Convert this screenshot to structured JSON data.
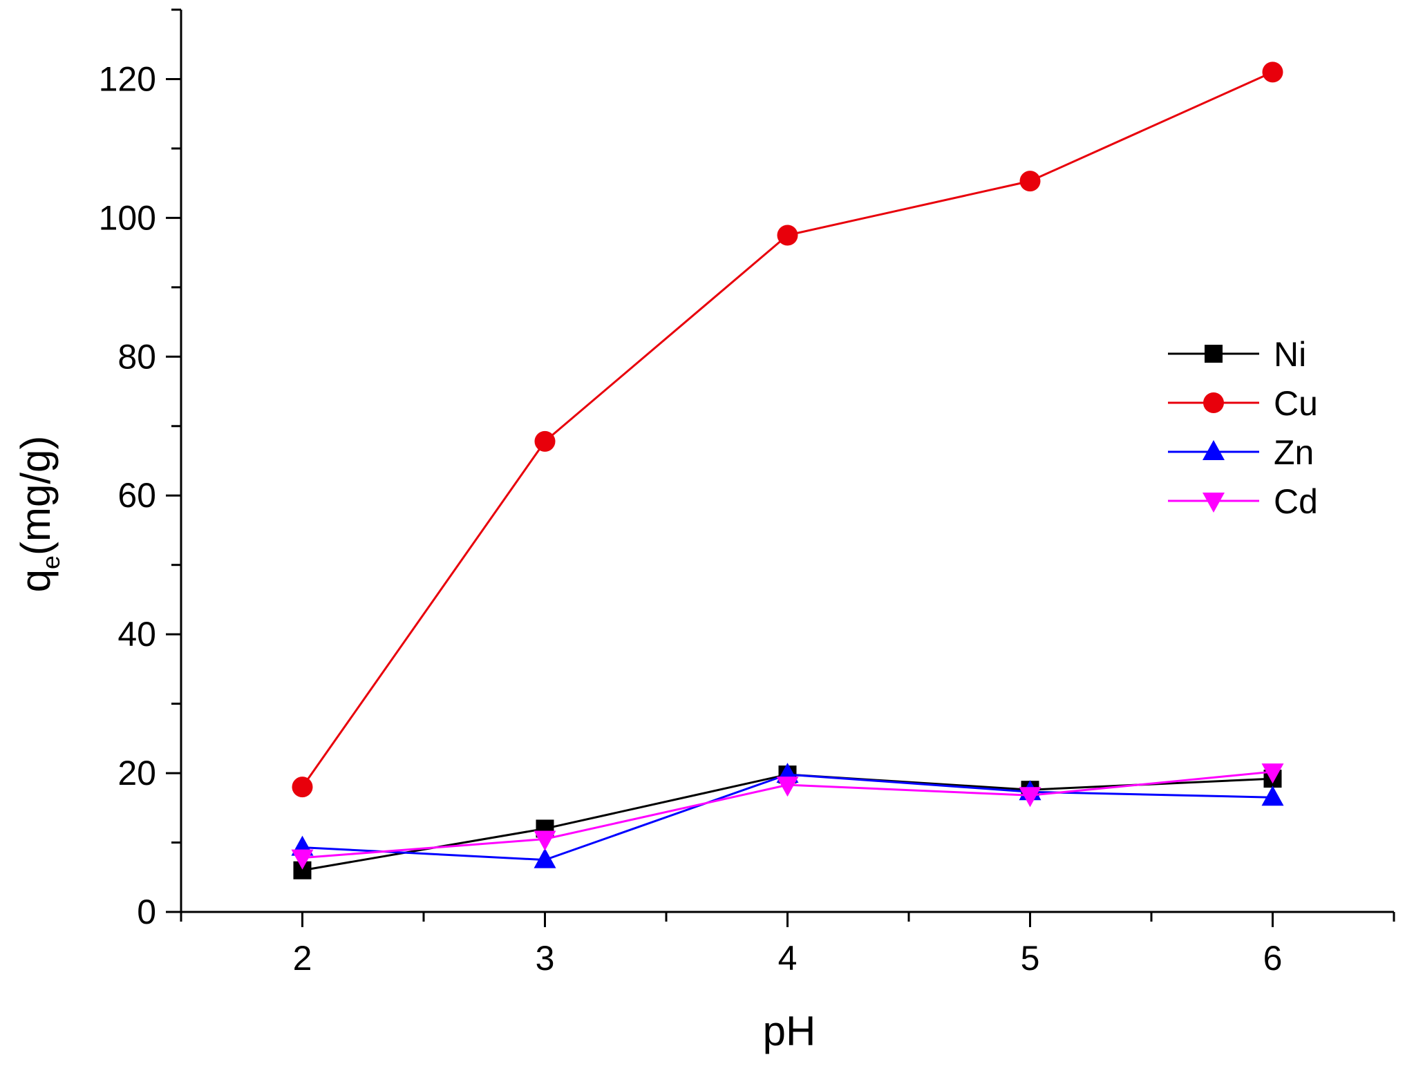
{
  "chart_data": {
    "type": "line",
    "xlabel": "pH",
    "ylabel": {
      "main": "q",
      "subscript": "e",
      "unit": "(mg/g)"
    },
    "x": [
      2,
      3,
      4,
      5,
      6
    ],
    "xlim": [
      1.5,
      6.5
    ],
    "ylim": [
      0,
      130
    ],
    "x_ticks": [
      "2",
      "3",
      "4",
      "5",
      "6"
    ],
    "y_ticks": [
      "0",
      "20",
      "40",
      "60",
      "80",
      "100",
      "120"
    ],
    "grid": false,
    "legend_position": "right",
    "series": [
      {
        "name": "Ni",
        "color": "#000000",
        "marker": "square",
        "values": [
          6,
          12,
          19.8,
          17.6,
          19.2
        ]
      },
      {
        "name": "Cu",
        "color": "#e8000b",
        "marker": "circle",
        "values": [
          18,
          67.8,
          97.5,
          105.3,
          121
        ]
      },
      {
        "name": "Zn",
        "color": "#0000ff",
        "marker": "triangle-up",
        "values": [
          9.3,
          7.5,
          19.8,
          17.3,
          16.5
        ]
      },
      {
        "name": "Cd",
        "color": "#ff00ff",
        "marker": "triangle-down",
        "values": [
          7.8,
          10.5,
          18.3,
          16.8,
          20.2
        ]
      }
    ]
  }
}
